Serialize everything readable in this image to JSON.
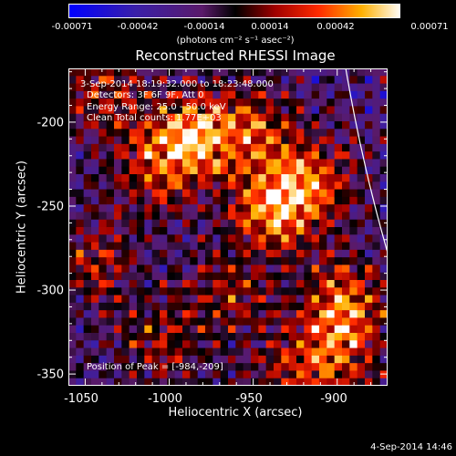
{
  "colorbar": {
    "ticks": [
      "-0.00071",
      "-0.00042",
      "-0.00014",
      "0.00014",
      "0.00042",
      "0.00071"
    ],
    "units": "(photons cm⁻² s⁻¹ asec⁻²)"
  },
  "chart_data": {
    "type": "heatmap",
    "title": "Reconstructed RHESSI Image",
    "xlabel": "Heliocentric X (arcsec)",
    "ylabel": "Heliocentric Y (arcsec)",
    "xlim": [
      -1060,
      -870
    ],
    "ylim": [
      -357,
      -168
    ],
    "x_ticks": [
      "-1050",
      "-1000",
      "-950",
      "-900"
    ],
    "y_ticks": [
      "-200",
      "-250",
      "-300",
      "-350"
    ],
    "value_range": [
      -0.00071,
      0.00071
    ],
    "colormap": "red-temperature",
    "limb_color": "#ffffff",
    "peak_position": [
      -984,
      -209
    ]
  },
  "info": {
    "time": "3-Sep-2014 18:19:32.000 to 18:23:48.000",
    "detectors": "Detectors: 3F 6F 9F, Att 0",
    "energy": "Energy Range: 25.0 - 50.0 keV",
    "clean": "Clean    Total counts: 1.77E+03",
    "peak": "Position of Peak = [-984,-209]"
  },
  "footer": {
    "timestamp": "4-Sep-2014 14:46"
  }
}
